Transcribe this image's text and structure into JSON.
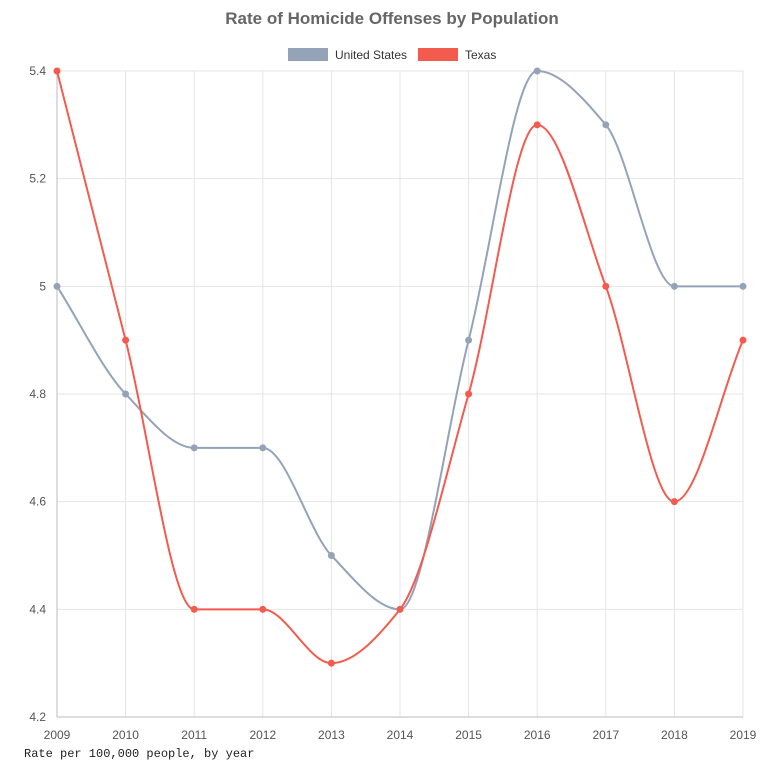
{
  "chart_data": {
    "type": "line",
    "title": "Rate of Homicide Offenses by Population",
    "caption": "Rate per 100,000 people, by year",
    "categories": [
      "2009",
      "2010",
      "2011",
      "2012",
      "2013",
      "2014",
      "2015",
      "2016",
      "2017",
      "2018",
      "2019"
    ],
    "series": [
      {
        "name": "United States",
        "color": "#94a3b8",
        "values": [
          5.0,
          4.8,
          4.7,
          4.7,
          4.5,
          4.4,
          4.9,
          5.4,
          5.3,
          5.0,
          5.0
        ]
      },
      {
        "name": "Texas",
        "color": "#f45b4f",
        "values": [
          5.4,
          4.9,
          4.4,
          4.4,
          4.3,
          4.4,
          4.8,
          5.3,
          5.0,
          4.6,
          4.9
        ]
      }
    ],
    "ylim": [
      4.2,
      5.4
    ],
    "yticks": [
      "4.2",
      "4.4",
      "4.6",
      "4.8",
      "5",
      "5.2",
      "5.4"
    ],
    "grid": true,
    "legend_position": "top"
  }
}
